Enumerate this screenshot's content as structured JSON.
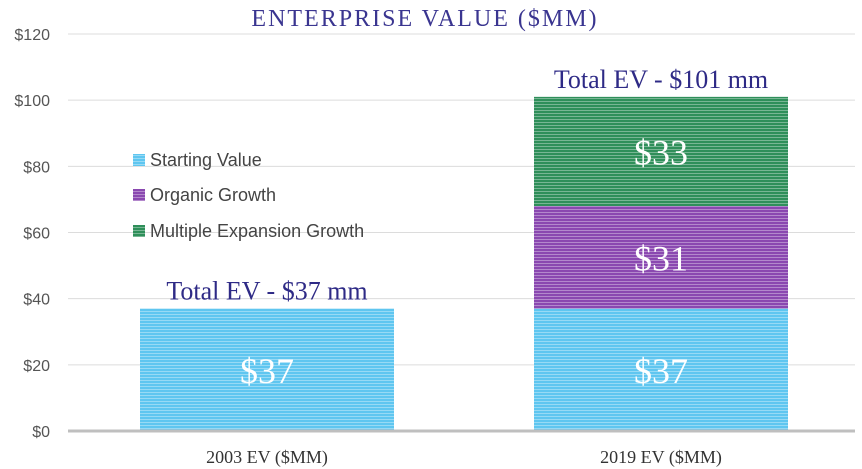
{
  "chart_data": {
    "type": "bar",
    "stacked": true,
    "title": "ENTERPRISE VALUE ($MM)",
    "categories": [
      "2003 EV ($MM)",
      "2019 EV ($MM)"
    ],
    "series": [
      {
        "name": "Starting Value",
        "values": [
          37,
          37
        ],
        "labels": [
          "$37",
          "$37"
        ],
        "color": "#5fc6f0"
      },
      {
        "name": "Organic Growth",
        "values": [
          0,
          31
        ],
        "labels": [
          "",
          "$31"
        ],
        "color": "#8a48b0"
      },
      {
        "name": "Multiple Expansion Growth",
        "values": [
          0,
          33
        ],
        "labels": [
          "",
          "$33"
        ],
        "color": "#2f8f5a"
      }
    ],
    "totals": [
      "Total EV - $37 mm",
      "Total EV - $101 mm"
    ],
    "ylim": [
      0,
      120
    ],
    "yticks": [
      0,
      20,
      40,
      60,
      80,
      100,
      120
    ],
    "ytick_labels": [
      "$0",
      "$20",
      "$40",
      "$60",
      "$80",
      "$100",
      "$120"
    ],
    "xlabel": "",
    "ylabel": "",
    "grid": true,
    "legend": "left"
  }
}
